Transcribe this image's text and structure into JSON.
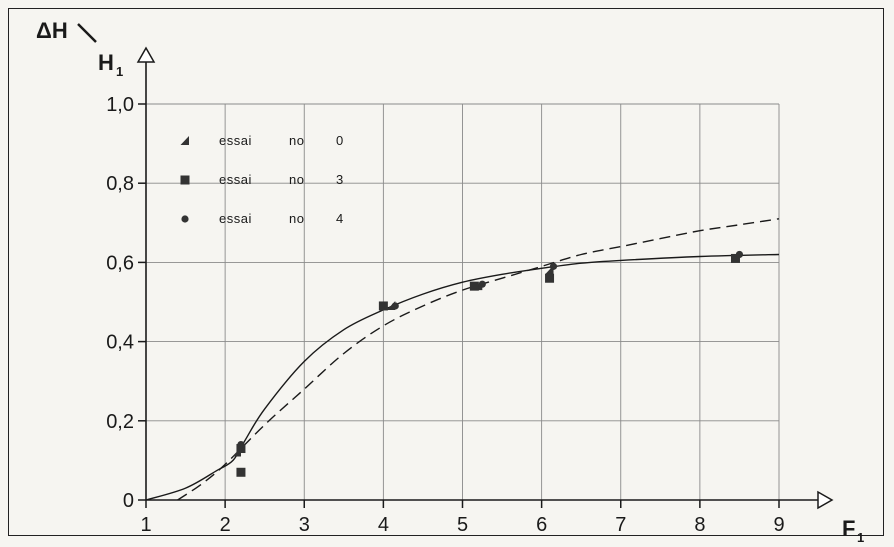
{
  "chart_data": {
    "type": "scatter",
    "ylabel_top": "ΔH",
    "ylabel_bottom": "H",
    "ylabel_sub": "1",
    "xlabel": "F",
    "xlabel_sub": "1",
    "xlim": [
      1,
      9
    ],
    "ylim": [
      0,
      1.0
    ],
    "x_ticks": [
      "1",
      "2",
      "3",
      "4",
      "5",
      "6",
      "7",
      "8",
      "9"
    ],
    "y_ticks": [
      "0",
      "0,2",
      "0,4",
      "0,6",
      "0,8",
      "1,0"
    ],
    "grid": true,
    "legend_position": "top-left",
    "series": [
      {
        "name": "essai no 0",
        "label_word": "essai",
        "label_no": "no",
        "label_num": "0",
        "marker": "triangle",
        "points": [
          [
            2.15,
            0.12
          ],
          [
            4.1,
            0.49
          ],
          [
            5.2,
            0.54
          ],
          [
            6.1,
            0.58
          ],
          [
            8.45,
            0.61
          ]
        ]
      },
      {
        "name": "essai no 3",
        "label_word": "essai",
        "label_no": "no",
        "label_num": "3",
        "marker": "square",
        "points": [
          [
            2.2,
            0.07
          ],
          [
            2.2,
            0.13
          ],
          [
            4.0,
            0.49
          ],
          [
            5.15,
            0.54
          ],
          [
            6.1,
            0.56
          ],
          [
            8.45,
            0.61
          ]
        ]
      },
      {
        "name": "essai no 4",
        "label_word": "essai",
        "label_no": "no",
        "label_num": "4",
        "marker": "circle",
        "points": [
          [
            2.2,
            0.14
          ],
          [
            4.15,
            0.49
          ],
          [
            5.25,
            0.545
          ],
          [
            6.15,
            0.59
          ],
          [
            8.5,
            0.62
          ]
        ]
      }
    ],
    "curves": [
      {
        "style": "solid",
        "points": [
          [
            1.0,
            0.0
          ],
          [
            1.5,
            0.03
          ],
          [
            1.9,
            0.075
          ],
          [
            2.1,
            0.1
          ],
          [
            2.25,
            0.15
          ],
          [
            2.5,
            0.23
          ],
          [
            3.0,
            0.35
          ],
          [
            3.5,
            0.43
          ],
          [
            4.0,
            0.48
          ],
          [
            4.5,
            0.52
          ],
          [
            5.0,
            0.55
          ],
          [
            5.5,
            0.57
          ],
          [
            6.0,
            0.585
          ],
          [
            6.5,
            0.598
          ],
          [
            7.0,
            0.605
          ],
          [
            8.0,
            0.615
          ],
          [
            9.0,
            0.62
          ]
        ]
      },
      {
        "style": "dashed",
        "points": [
          [
            1.4,
            0.0
          ],
          [
            1.7,
            0.04
          ],
          [
            2.0,
            0.09
          ],
          [
            2.5,
            0.19
          ],
          [
            3.0,
            0.28
          ],
          [
            3.5,
            0.37
          ],
          [
            4.0,
            0.44
          ],
          [
            4.5,
            0.49
          ],
          [
            5.0,
            0.53
          ],
          [
            5.5,
            0.56
          ],
          [
            6.0,
            0.59
          ],
          [
            6.5,
            0.62
          ],
          [
            7.0,
            0.64
          ],
          [
            7.5,
            0.66
          ],
          [
            8.0,
            0.68
          ],
          [
            8.5,
            0.695
          ],
          [
            9.0,
            0.71
          ]
        ]
      }
    ]
  }
}
